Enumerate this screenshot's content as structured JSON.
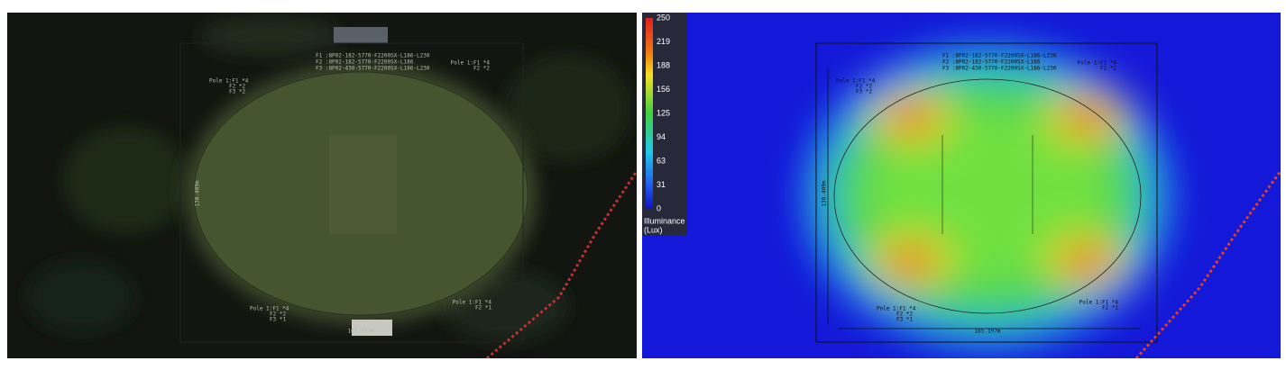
{
  "legend": {
    "ticks": [
      250,
      219,
      188,
      156,
      125,
      94,
      63,
      31,
      0
    ],
    "title_line1": "Illuminance",
    "title_line2": "(Lux)"
  },
  "fixtures": [
    "F1 :8P02-182-5770-F2200SX-L186-L230",
    "F2 :8P02-182-5770-F2200SX-L186",
    "F3 :8P02-430-5770-F2200SX-L186-L230"
  ],
  "poles": [
    {
      "lines": [
        "Pole 1:F1 *4",
        "F2 *2",
        "F3 *2"
      ]
    },
    {
      "lines": [
        "Pole 1:F1 *4",
        "F2 *2"
      ]
    },
    {
      "lines": [
        "Pole 1:F1 *4",
        "F2 *2",
        "F3 *1"
      ]
    },
    {
      "lines": [
        "Pole 1:F1 *4",
        "F2 *1"
      ]
    }
  ],
  "dimensions": {
    "width": "165.197m",
    "height": "130.409m"
  }
}
